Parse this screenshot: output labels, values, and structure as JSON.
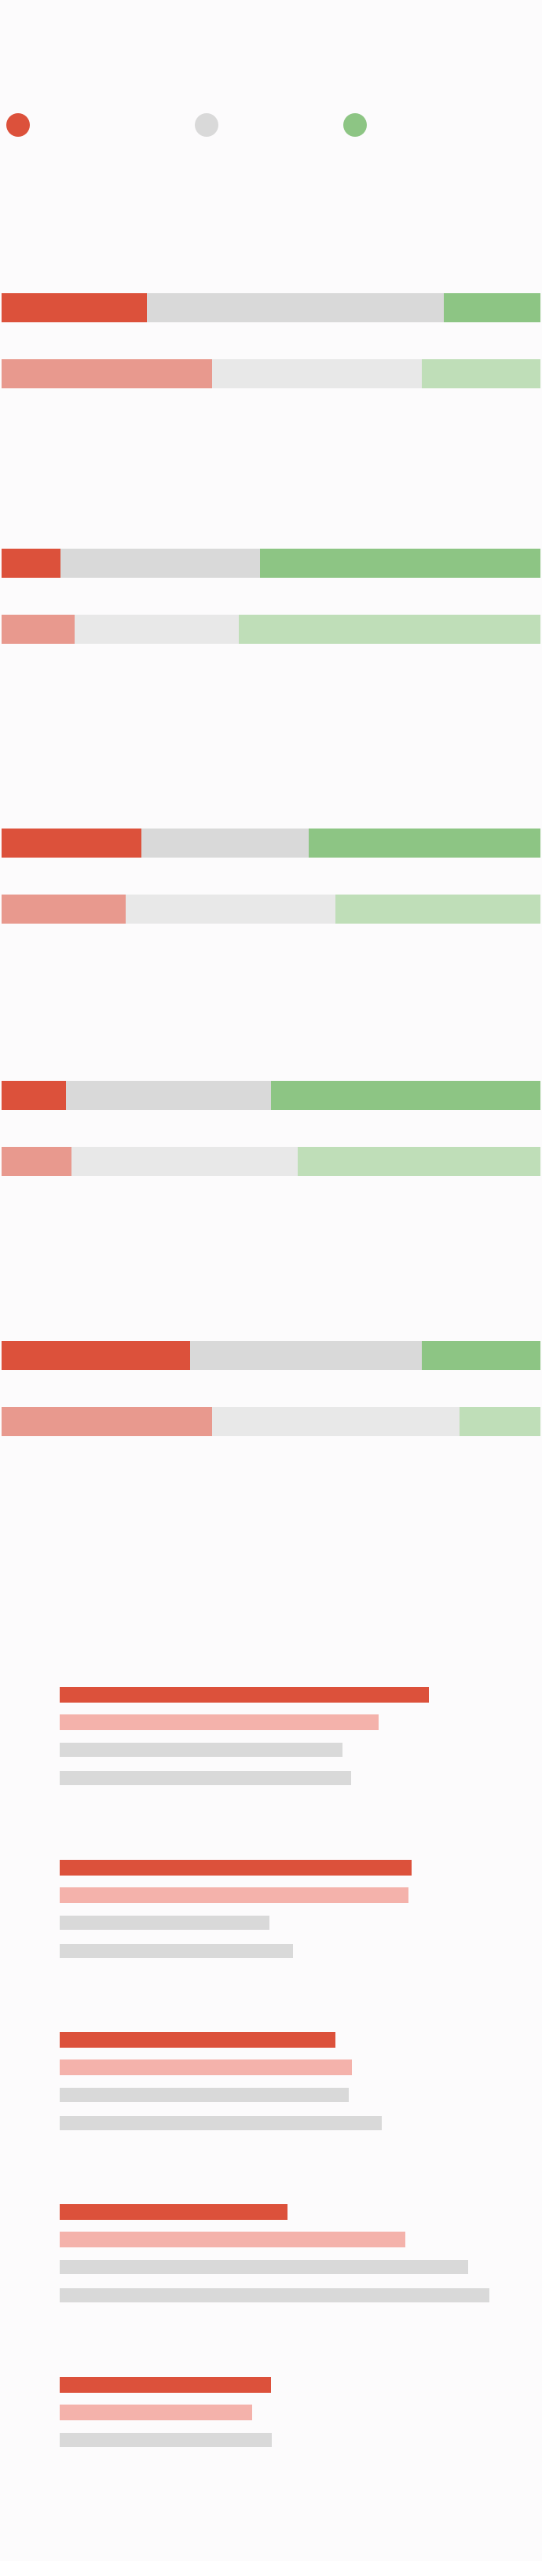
{
  "legend": [
    {
      "name": "",
      "color": "#dc513b"
    },
    {
      "name": "",
      "color": "#d9d9d9"
    },
    {
      "name": "",
      "color": "#8dc584"
    }
  ],
  "chart_data": [
    {
      "type": "stacked-bar",
      "orientation": "horizontal",
      "normalized": true,
      "groups": [
        {
          "rows": [
            [
              27,
              55,
              18
            ],
            [
              39,
              39,
              22
            ]
          ]
        },
        {
          "rows": [
            [
              11,
              37,
              52
            ],
            [
              13.5,
              30.5,
              56
            ]
          ]
        },
        {
          "rows": [
            [
              26,
              31,
              43
            ],
            [
              23,
              39,
              38
            ]
          ]
        },
        {
          "rows": [
            [
              12,
              38,
              50
            ],
            [
              13,
              42,
              45
            ]
          ]
        },
        {
          "rows": [
            [
              35,
              43,
              22
            ],
            [
              39,
              46,
              15
            ]
          ]
        }
      ],
      "colors": {
        "primary": [
          "#dc513b",
          "#d9d9d9",
          "#8dc584"
        ],
        "secondary": [
          "#e8998e",
          "#e8e8e8",
          "#bfdeb8"
        ]
      }
    },
    {
      "type": "bar",
      "orientation": "horizontal",
      "groups": [
        {
          "values": [
            470,
            406,
            360,
            371
          ]
        },
        {
          "values": [
            448,
            444,
            267,
            297
          ]
        },
        {
          "values": [
            351,
            372,
            368,
            410
          ]
        },
        {
          "values": [
            290,
            440,
            520,
            547
          ]
        },
        {
          "values": [
            269,
            245,
            270
          ]
        }
      ],
      "colors": [
        "#dc513b",
        "#f4b2ab",
        "#d9d9d9",
        "#d9d9d9"
      ]
    }
  ]
}
